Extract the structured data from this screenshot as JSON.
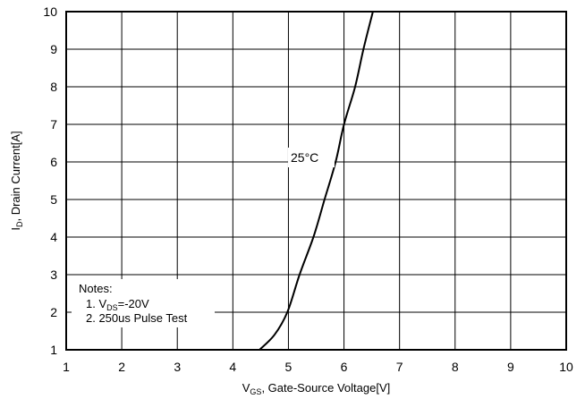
{
  "chart_data": {
    "type": "line",
    "title": "",
    "xlabel": {
      "prefix": "V",
      "sub": "GS",
      "rest": ", Gate-Source Voltage[V]"
    },
    "ylabel": {
      "prefix": "I",
      "sub": "D",
      "rest": ", Drain Current[A]"
    },
    "xlim": [
      1,
      10
    ],
    "ylim": [
      1,
      10
    ],
    "xticks": [
      1,
      2,
      3,
      4,
      5,
      6,
      7,
      8,
      9,
      10
    ],
    "yticks": [
      1,
      2,
      3,
      4,
      5,
      6,
      7,
      8,
      9,
      10
    ],
    "grid": true,
    "series": [
      {
        "name": "25°C",
        "x": [
          4.48,
          4.75,
          4.98,
          5.2,
          5.45,
          5.65,
          5.85,
          6.0,
          6.2,
          6.35,
          6.52
        ],
        "y": [
          1.0,
          1.4,
          2.0,
          3.0,
          4.0,
          5.0,
          6.0,
          7.0,
          8.0,
          9.0,
          10.0
        ]
      }
    ],
    "notes": {
      "title": "Notes:",
      "line1": {
        "prefix": "1. V",
        "sub": "DS",
        "rest": "=-20V"
      },
      "line2": "2. 250us Pulse Test"
    },
    "colors": {
      "line": "#000000",
      "grid": "#000000",
      "background": "#ffffff"
    }
  }
}
